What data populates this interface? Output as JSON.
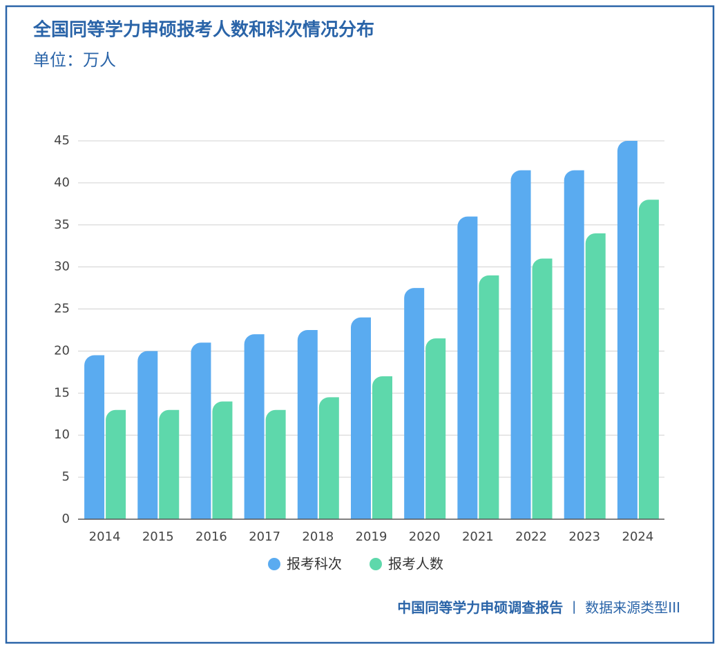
{
  "chart_data": {
    "type": "bar",
    "title": "全国同等学力申硕报考人数和科次情况分布",
    "subtitle": "单位：万人",
    "categories": [
      "2014",
      "2015",
      "2016",
      "2017",
      "2018",
      "2019",
      "2020",
      "2021",
      "2022",
      "2023",
      "2024"
    ],
    "series": [
      {
        "name": "报考科次",
        "color": "#5aabf0",
        "values": [
          19.5,
          20,
          21,
          22,
          22.5,
          24,
          27.5,
          36,
          41.5,
          41.5,
          45
        ]
      },
      {
        "name": "报考人数",
        "color": "#5ed8ab",
        "values": [
          13,
          13,
          14,
          13,
          14.5,
          17,
          21.5,
          29,
          31,
          34,
          38
        ]
      }
    ],
    "ylim": [
      0,
      45
    ],
    "yticks": [
      0,
      5,
      10,
      15,
      20,
      25,
      30,
      35,
      40,
      45
    ],
    "grid": true,
    "legend": "bottom"
  },
  "footer": {
    "report": "中国同等学力申硕调查报告",
    "separator": "丨",
    "source": "数据来源类型III"
  }
}
